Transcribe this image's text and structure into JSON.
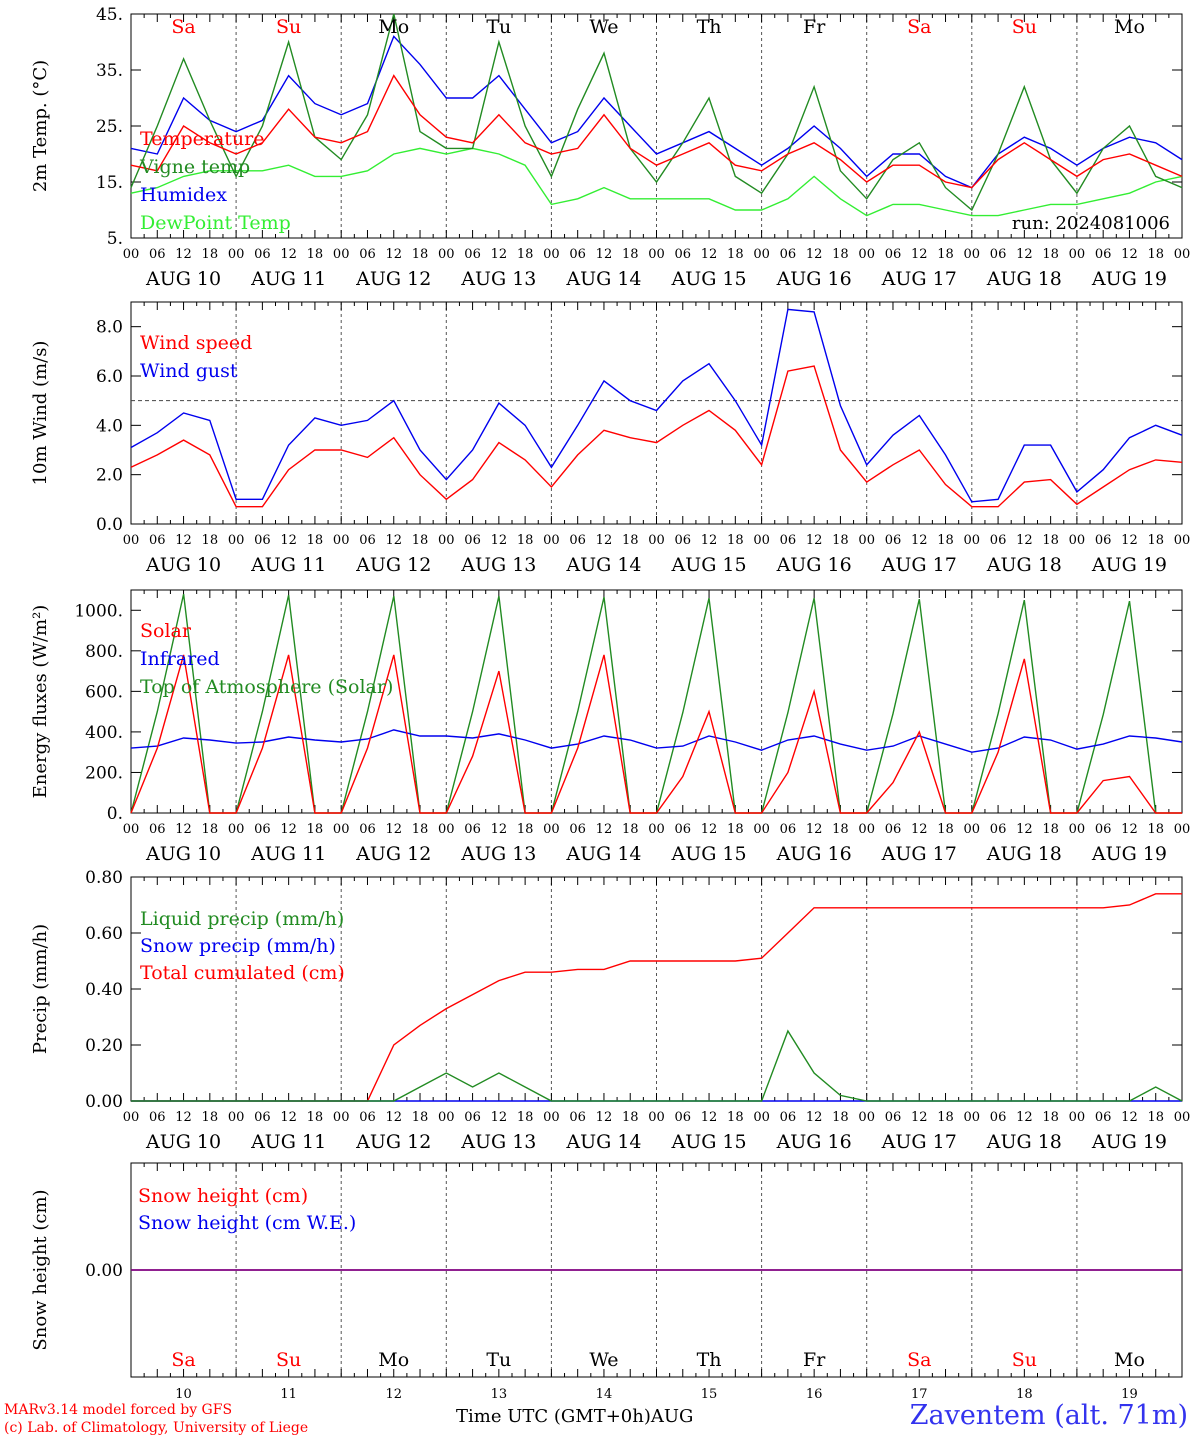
{
  "days": [
    {
      "date": "AUG 10",
      "num": "10",
      "wd": "Sa",
      "weekend": true
    },
    {
      "date": "AUG 11",
      "num": "11",
      "wd": "Su",
      "weekend": true
    },
    {
      "date": "AUG 12",
      "num": "12",
      "wd": "Mo",
      "weekend": false
    },
    {
      "date": "AUG 13",
      "num": "13",
      "wd": "Tu",
      "weekend": false
    },
    {
      "date": "AUG 14",
      "num": "14",
      "wd": "We",
      "weekend": false
    },
    {
      "date": "AUG 15",
      "num": "15",
      "wd": "Th",
      "weekend": false
    },
    {
      "date": "AUG 16",
      "num": "16",
      "wd": "Fr",
      "weekend": false
    },
    {
      "date": "AUG 17",
      "num": "17",
      "wd": "Sa",
      "weekend": true
    },
    {
      "date": "AUG 18",
      "num": "18",
      "wd": "Su",
      "weekend": true
    },
    {
      "date": "AUG 19",
      "num": "19",
      "wd": "Mo",
      "weekend": false
    }
  ],
  "hour_labels": [
    "00",
    "06",
    "12",
    "18"
  ],
  "final_hour_label": "00",
  "colors": {
    "red": "#ff0000",
    "green": "#228b22",
    "lightgreen": "#33ee33",
    "blue": "#0000ee",
    "purple": "#800080",
    "weekend": "#ff0000"
  },
  "run_label": "run: 2024081006",
  "credit_line1": "MARv3.14 model forced by GFS",
  "credit_line2": "(c) Lab. of Climatology, University of Liege",
  "time_axis_label": "Time UTC (GMT+0h)",
  "month_label": "AUG",
  "station_label": "Zaventem (alt. 71m)",
  "chart_data": [
    {
      "type": "line",
      "ylabel": "2m Temp. (°C)",
      "ylim": [
        5,
        45
      ],
      "yticks": [
        5,
        15,
        25,
        35,
        45
      ],
      "ytick_labels": [
        "5.",
        "15.",
        "25.",
        "35.",
        "45."
      ],
      "x_hours": [
        0,
        6,
        12,
        18,
        24,
        30,
        36,
        42,
        48,
        54,
        60,
        66,
        72,
        78,
        84,
        90,
        96,
        102,
        108,
        114,
        120,
        126,
        132,
        138,
        144,
        150,
        156,
        162,
        168,
        174,
        180,
        186,
        192,
        198,
        204,
        210,
        216,
        222,
        228,
        234,
        240
      ],
      "series": [
        {
          "name": "Temperature",
          "color": "red",
          "values": [
            18,
            17,
            25,
            22,
            20,
            22,
            28,
            23,
            22,
            24,
            34,
            27,
            23,
            22,
            27,
            22,
            20,
            21,
            27,
            21,
            18,
            20,
            22,
            18,
            17,
            20,
            22,
            19,
            15,
            18,
            18,
            15,
            14,
            19,
            22,
            19,
            16,
            19,
            20,
            18,
            16
          ]
        },
        {
          "name": "Vigne temp",
          "color": "green",
          "values": [
            14,
            25,
            37,
            26,
            16,
            25,
            40,
            23,
            19,
            27,
            45,
            24,
            21,
            21,
            40,
            25,
            16,
            28,
            38,
            21,
            15,
            22,
            30,
            16,
            13,
            20,
            32,
            17,
            12,
            19,
            22,
            14,
            10,
            20,
            32,
            19,
            13,
            21,
            25,
            16,
            14
          ]
        },
        {
          "name": "Humidex",
          "color": "blue",
          "values": [
            21,
            20,
            30,
            26,
            24,
            26,
            34,
            29,
            27,
            29,
            41,
            36,
            30,
            30,
            34,
            28,
            22,
            24,
            30,
            25,
            20,
            22,
            24,
            21,
            18,
            21,
            25,
            21,
            16,
            20,
            20,
            16,
            14,
            20,
            23,
            21,
            18,
            21,
            23,
            22,
            19
          ]
        },
        {
          "name": "DewPoint Temp",
          "color": "lightgreen",
          "values": [
            13,
            14,
            16,
            17,
            17,
            17,
            18,
            16,
            16,
            17,
            20,
            21,
            20,
            21,
            20,
            18,
            11,
            12,
            14,
            12,
            12,
            12,
            12,
            10,
            10,
            12,
            16,
            12,
            9,
            11,
            11,
            10,
            9,
            9,
            10,
            11,
            11,
            12,
            13,
            15,
            16
          ]
        }
      ]
    },
    {
      "type": "line",
      "ylabel": "10m Wind (m/s)",
      "ylim": [
        0,
        9
      ],
      "yticks": [
        0,
        2,
        4,
        6,
        8
      ],
      "ytick_labels": [
        "0.0",
        "2.0",
        "4.0",
        "6.0",
        "8.0"
      ],
      "reference_line": 5,
      "x_hours": [
        0,
        6,
        12,
        18,
        24,
        30,
        36,
        42,
        48,
        54,
        60,
        66,
        72,
        78,
        84,
        90,
        96,
        102,
        108,
        114,
        120,
        126,
        132,
        138,
        144,
        150,
        156,
        162,
        168,
        174,
        180,
        186,
        192,
        198,
        204,
        210,
        216,
        222,
        228,
        234,
        240
      ],
      "series": [
        {
          "name": "Wind speed",
          "color": "red",
          "values": [
            2.3,
            2.8,
            3.4,
            2.8,
            0.7,
            0.7,
            2.2,
            3.0,
            3.0,
            2.7,
            3.5,
            2.0,
            1.0,
            1.8,
            3.3,
            2.6,
            1.5,
            2.8,
            3.8,
            3.5,
            3.3,
            4.0,
            4.6,
            3.8,
            2.4,
            6.2,
            6.4,
            3.0,
            1.7,
            2.4,
            3.0,
            1.6,
            0.7,
            0.7,
            1.7,
            1.8,
            0.8,
            1.5,
            2.2,
            2.6,
            2.5
          ]
        },
        {
          "name": "Wind gust",
          "color": "blue",
          "values": [
            3.1,
            3.7,
            4.5,
            4.2,
            1.0,
            1.0,
            3.2,
            4.3,
            4.0,
            4.2,
            5.0,
            3.0,
            1.8,
            3.0,
            4.9,
            4.0,
            2.3,
            4.0,
            5.8,
            5.0,
            4.6,
            5.8,
            6.5,
            5.0,
            3.2,
            8.7,
            8.6,
            4.8,
            2.4,
            3.6,
            4.4,
            2.8,
            0.9,
            1.0,
            3.2,
            3.2,
            1.3,
            2.2,
            3.5,
            4.0,
            3.6
          ]
        }
      ]
    },
    {
      "type": "line",
      "ylabel": "Energy fluxes (W/m²)",
      "ylim": [
        0,
        1100
      ],
      "yticks": [
        0,
        200,
        400,
        600,
        800,
        1000
      ],
      "ytick_labels": [
        "0.",
        "200.",
        "400.",
        "600.",
        "800.",
        "1000."
      ],
      "x_hours": [
        0,
        6,
        12,
        18,
        24,
        30,
        36,
        42,
        48,
        54,
        60,
        66,
        72,
        78,
        84,
        90,
        96,
        102,
        108,
        114,
        120,
        126,
        132,
        138,
        144,
        150,
        156,
        162,
        168,
        174,
        180,
        186,
        192,
        198,
        204,
        210,
        216,
        222,
        228,
        234,
        240
      ],
      "series": [
        {
          "name": "Solar",
          "color": "red",
          "values": [
            0,
            320,
            780,
            0,
            0,
            320,
            780,
            0,
            0,
            320,
            780,
            0,
            0,
            280,
            700,
            0,
            0,
            320,
            780,
            0,
            0,
            180,
            500,
            0,
            0,
            200,
            600,
            0,
            0,
            150,
            400,
            0,
            0,
            300,
            760,
            0,
            0,
            160,
            180,
            0,
            0
          ]
        },
        {
          "name": "Infrared",
          "color": "blue",
          "values": [
            320,
            330,
            370,
            360,
            345,
            350,
            375,
            360,
            350,
            365,
            410,
            380,
            380,
            370,
            390,
            360,
            320,
            340,
            380,
            360,
            320,
            330,
            380,
            350,
            310,
            360,
            380,
            340,
            310,
            330,
            380,
            340,
            300,
            320,
            375,
            360,
            315,
            340,
            380,
            370,
            350
          ]
        },
        {
          "name": "Top of Atmosphere (Solar)",
          "color": "green",
          "values": [
            0,
            500,
            1080,
            0,
            0,
            500,
            1075,
            0,
            0,
            500,
            1070,
            0,
            0,
            500,
            1070,
            0,
            0,
            500,
            1065,
            0,
            0,
            495,
            1060,
            0,
            0,
            495,
            1060,
            0,
            0,
            490,
            1055,
            0,
            0,
            490,
            1050,
            0,
            0,
            485,
            1045,
            0,
            0
          ]
        }
      ]
    },
    {
      "type": "line",
      "ylabel": "Precip (mm/h)",
      "ylim": [
        0,
        0.8
      ],
      "yticks": [
        0,
        0.2,
        0.4,
        0.6,
        0.8
      ],
      "ytick_labels": [
        "0.00",
        "0.20",
        "0.40",
        "0.60",
        "0.80"
      ],
      "x_hours": [
        0,
        6,
        12,
        18,
        24,
        30,
        36,
        42,
        48,
        54,
        60,
        66,
        72,
        78,
        84,
        90,
        96,
        102,
        108,
        114,
        120,
        126,
        132,
        138,
        144,
        150,
        156,
        162,
        168,
        174,
        180,
        186,
        192,
        198,
        204,
        210,
        216,
        222,
        228,
        234,
        240
      ],
      "series": [
        {
          "name": "Liquid precip (mm/h)",
          "color": "green",
          "values": [
            0,
            0,
            0,
            0,
            0,
            0,
            0,
            0,
            0,
            0,
            0,
            0.05,
            0.1,
            0.05,
            0.1,
            0.05,
            0,
            0,
            0,
            0,
            0,
            0,
            0,
            0,
            0,
            0.25,
            0.1,
            0.02,
            0,
            0,
            0,
            0,
            0,
            0,
            0,
            0,
            0,
            0,
            0,
            0.05,
            0
          ]
        },
        {
          "name": "Snow precip (mm/h)",
          "color": "blue",
          "values": [
            0,
            0,
            0,
            0,
            0,
            0,
            0,
            0,
            0,
            0,
            0,
            0,
            0,
            0,
            0,
            0,
            0,
            0,
            0,
            0,
            0,
            0,
            0,
            0,
            0,
            0,
            0,
            0,
            0,
            0,
            0,
            0,
            0,
            0,
            0,
            0,
            0,
            0,
            0,
            0,
            0
          ]
        },
        {
          "name": "Total cumulated (cm)",
          "color": "red",
          "values": [
            0,
            0,
            0,
            0,
            0,
            0,
            0,
            0,
            0,
            0,
            0.2,
            0.27,
            0.33,
            0.38,
            0.43,
            0.46,
            0.46,
            0.47,
            0.47,
            0.5,
            0.5,
            0.5,
            0.5,
            0.5,
            0.51,
            0.6,
            0.69,
            0.69,
            0.69,
            0.69,
            0.69,
            0.69,
            0.69,
            0.69,
            0.69,
            0.69,
            0.69,
            0.69,
            0.7,
            0.74,
            0.74
          ]
        }
      ]
    },
    {
      "type": "line",
      "ylabel": "Snow height (cm)",
      "ylim": [
        -1,
        1
      ],
      "yticks": [
        0
      ],
      "ytick_labels": [
        "0.00"
      ],
      "x_hours": [
        0,
        240
      ],
      "series": [
        {
          "name": "Snow height (cm)",
          "color": "red",
          "values": [
            0,
            0
          ]
        },
        {
          "name": "Snow height (cm W.E.)",
          "color": "blue",
          "values": [
            0,
            0
          ]
        }
      ]
    }
  ]
}
